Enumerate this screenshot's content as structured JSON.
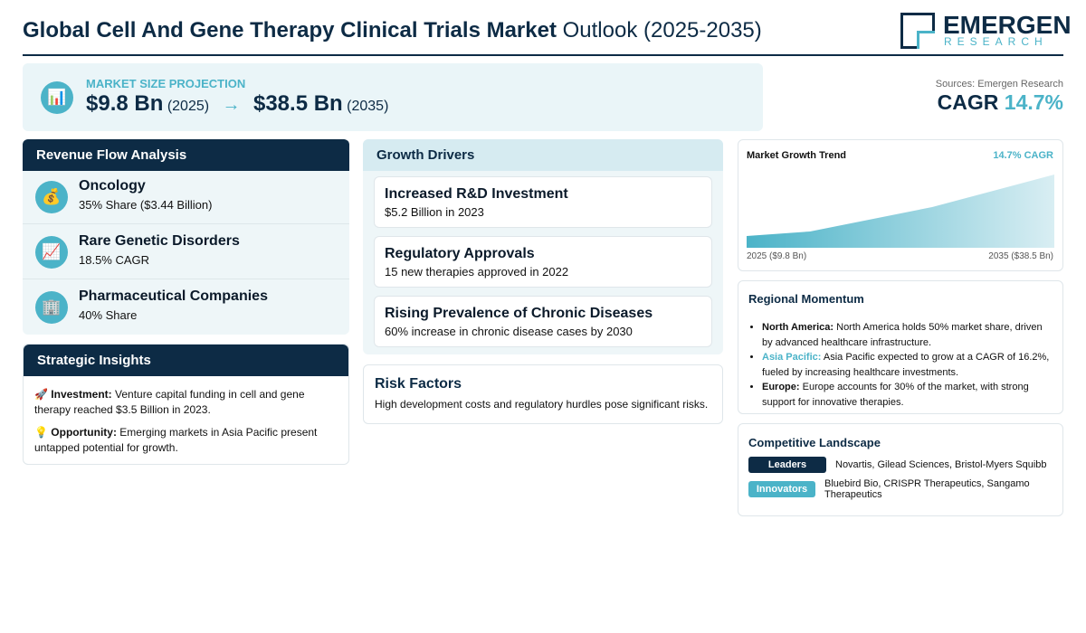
{
  "header": {
    "title_bold": "Global Cell And Gene Therapy Clinical Trials Market",
    "title_rest": "Outlook (2025-2035)",
    "logo_main": "EMERGEN",
    "logo_sub": "RESEARCH"
  },
  "projection": {
    "icon": "📊",
    "label": "MARKET SIZE PROJECTION",
    "start_value": "$9.8 Bn",
    "start_year": "(2025)",
    "arrow": "→",
    "end_value": "$38.5 Bn",
    "end_year": "(2035)"
  },
  "sources": "Sources: Emergen Research",
  "cagr": {
    "label": "CAGR",
    "value": "14.7%"
  },
  "revenue_flow": {
    "title": "Revenue Flow Analysis",
    "items": [
      {
        "icon": "💰",
        "name": "Oncology",
        "detail": "35% Share ($3.44 Billion)"
      },
      {
        "icon": "📈",
        "name": "Rare Genetic Disorders",
        "detail": "18.5% CAGR"
      },
      {
        "icon": "🏢",
        "name": "Pharmaceutical Companies",
        "detail": "40% Share"
      }
    ]
  },
  "strategic_insights": {
    "title": "Strategic Insights",
    "items": [
      {
        "icon": "🚀",
        "label": "Investment:",
        "text": "Venture capital funding in cell and gene therapy reached $3.5 Billion in 2023."
      },
      {
        "icon": "💡",
        "label": "Opportunity:",
        "text": "Emerging markets in Asia Pacific present untapped potential for growth."
      }
    ]
  },
  "growth_drivers": {
    "title": "Growth Drivers",
    "items": [
      {
        "name": "Increased R&D Investment",
        "detail": "$5.2 Billion in 2023"
      },
      {
        "name": "Regulatory Approvals",
        "detail": "15 new therapies approved in 2022"
      },
      {
        "name": "Rising Prevalence of Chronic Diseases",
        "detail": "60% increase in chronic disease cases by 2030"
      }
    ]
  },
  "risk_factors": {
    "title": "Risk Factors",
    "text": "High development costs and regulatory hurdles pose significant risks."
  },
  "trend": {
    "title": "Market Growth Trend",
    "badge": "14.7% CAGR",
    "start_label": "2025 ($9.8 Bn)",
    "end_label": "2035 ($38.5 Bn)"
  },
  "regional": {
    "title": "Regional Momentum",
    "items": [
      {
        "region": "North America:",
        "text": "North America holds 50% market share, driven by advanced healthcare infrastructure."
      },
      {
        "region": "Asia Pacific:",
        "text": "Asia Pacific expected to grow at a CAGR of 16.2%, fueled by increasing healthcare investments."
      },
      {
        "region": "Europe:",
        "text": "Europe accounts for 30% of the market, with strong support for innovative therapies."
      }
    ]
  },
  "competitive": {
    "title": "Competitive Landscape",
    "rows": [
      {
        "tag": "Leaders",
        "names": "Novartis, Gilead Sciences, Bristol-Myers Squibb"
      },
      {
        "tag": "Innovators",
        "names": "Bluebird Bio, CRISPR Therapeutics, Sangamo Therapeutics"
      }
    ]
  }
}
